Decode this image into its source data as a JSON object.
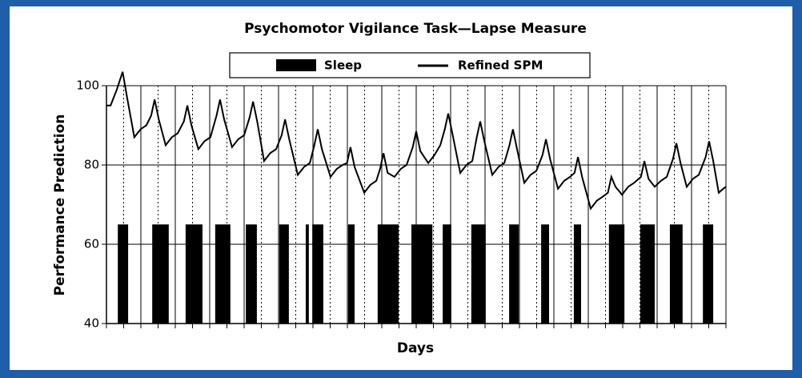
{
  "chart_data": {
    "type": "line",
    "title": "Psychomotor Vigilance Task—Lapse Measure",
    "xlabel": "Days",
    "ylabel": "Performance Prediction",
    "xlim": [
      0,
      18
    ],
    "ylim": [
      40,
      100
    ],
    "yticks": [
      40,
      60,
      80,
      100
    ],
    "xticks": [
      0,
      1,
      2,
      3,
      4,
      5,
      6,
      7,
      8,
      9,
      10,
      11,
      12,
      13,
      14,
      15,
      16,
      17,
      18
    ],
    "xminorticks": [
      0.5,
      1.5,
      2.5,
      3.5,
      4.5,
      5.5,
      6.5,
      7.5,
      8.5,
      9.5,
      10.5,
      11.5,
      12.5,
      13.5,
      14.5,
      15.5,
      16.5,
      17.5
    ],
    "grid": true,
    "legend": "top",
    "series": [
      {
        "name": "Sleep",
        "type": "bar",
        "color": "#000000",
        "start": [
          0.33,
          1.33,
          2.3,
          3.16,
          4.05,
          5.02,
          5.79,
          5.98,
          7.02,
          7.88,
          8.86,
          9.77,
          10.6,
          11.7,
          12.63,
          13.58,
          14.6,
          15.51,
          16.37,
          17.33
        ],
        "end": [
          0.63,
          1.81,
          2.79,
          3.6,
          4.37,
          5.3,
          5.88,
          6.3,
          7.21,
          8.49,
          9.47,
          10.02,
          11.02,
          11.98,
          12.86,
          13.79,
          15.05,
          15.93,
          16.74,
          17.63
        ],
        "values": [
          65,
          65,
          65,
          65,
          65,
          65,
          65,
          65,
          65,
          65,
          65,
          65,
          65,
          65,
          65,
          65,
          65,
          65,
          65,
          65
        ]
      },
      {
        "name": "Refined SPM",
        "type": "line",
        "color": "#000000",
        "x": [
          0,
          0.12,
          0.3,
          0.47,
          0.6,
          0.81,
          0.99,
          1.16,
          1.3,
          1.4,
          1.52,
          1.72,
          1.9,
          2.07,
          2.25,
          2.35,
          2.47,
          2.67,
          2.85,
          3.02,
          3.2,
          3.3,
          3.42,
          3.65,
          3.83,
          4.0,
          4.16,
          4.26,
          4.38,
          4.58,
          4.76,
          4.93,
          5.09,
          5.19,
          5.31,
          5.56,
          5.74,
          5.91,
          6.04,
          6.14,
          6.26,
          6.51,
          6.69,
          6.86,
          6.99,
          7.09,
          7.21,
          7.49,
          7.67,
          7.84,
          7.95,
          8.05,
          8.17,
          8.37,
          8.55,
          8.72,
          8.9,
          9.0,
          9.12,
          9.35,
          9.53,
          9.7,
          9.83,
          9.93,
          10.05,
          10.28,
          10.46,
          10.63,
          10.76,
          10.86,
          10.98,
          11.21,
          11.39,
          11.56,
          11.71,
          11.81,
          11.93,
          12.14,
          12.32,
          12.49,
          12.67,
          12.77,
          12.89,
          13.12,
          13.3,
          13.47,
          13.6,
          13.7,
          13.82,
          14.07,
          14.25,
          14.42,
          14.57,
          14.67,
          14.79,
          14.98,
          15.16,
          15.33,
          15.53,
          15.63,
          15.75,
          15.93,
          16.11,
          16.28,
          16.46,
          16.56,
          16.68,
          16.86,
          17.04,
          17.21,
          17.41,
          17.51,
          17.63,
          17.79,
          17.92,
          18
        ],
        "values": [
          95,
          95,
          99,
          103.5,
          97,
          87,
          89,
          90,
          92.5,
          96.5,
          91.5,
          85,
          87,
          88,
          91,
          95,
          90,
          84,
          86,
          87,
          92.5,
          96.5,
          91.5,
          84.5,
          86.5,
          87.5,
          92,
          96,
          91,
          81,
          83,
          84,
          87.5,
          91.5,
          86.5,
          77.5,
          79.5,
          80.5,
          85,
          89,
          84,
          77,
          79,
          80,
          80.5,
          84.5,
          79.5,
          73,
          75,
          76,
          79,
          83,
          78,
          77,
          79,
          80,
          84.5,
          88.5,
          83.5,
          80.5,
          82.5,
          85,
          89,
          93,
          88,
          78,
          80,
          81,
          87,
          91,
          86,
          77.5,
          79.5,
          80.5,
          85,
          89,
          84,
          75.5,
          77.5,
          78.5,
          82.5,
          86.5,
          81.5,
          74,
          76,
          77,
          78,
          82,
          77,
          69,
          71,
          72,
          73,
          77,
          74.5,
          72.5,
          74.5,
          75.5,
          77,
          81,
          76.5,
          74.5,
          76,
          77,
          81.5,
          85.5,
          80.5,
          74.5,
          76.5,
          77.5,
          82,
          86,
          81,
          73,
          74,
          74.5
        ]
      }
    ]
  }
}
